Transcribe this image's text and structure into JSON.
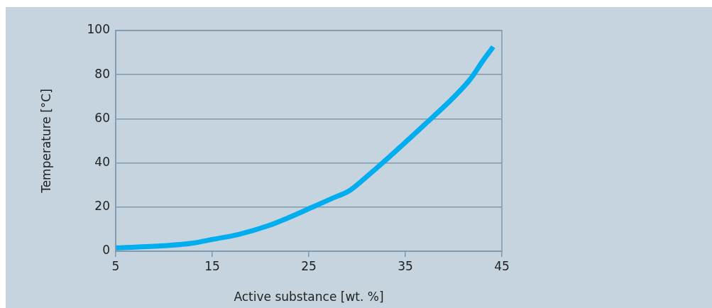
{
  "chart_data": {
    "type": "line",
    "xlabel": "Active substance [wt. %]",
    "ylabel": "Temperature [°C]",
    "xlim": [
      5,
      45
    ],
    "xticks": [
      5,
      15,
      25,
      35,
      45
    ],
    "ylim": [
      0,
      100
    ],
    "yticks": [
      0,
      20,
      40,
      60,
      80,
      100
    ],
    "grid": "y",
    "legend": false,
    "marker": "none",
    "line_style": "solid",
    "series": [
      {
        "color": "#00aeef",
        "x": [
          5,
          10,
          12.9,
          15.2,
          17.8,
          20.7,
          22.8,
          25.4,
          27.4,
          29.2,
          30.9,
          32.9,
          35.3,
          37.9,
          39.9,
          41.7,
          43.1,
          44.1
        ],
        "values": [
          1.5,
          2.5,
          3.6,
          5.5,
          7.7,
          11.4,
          15,
          20,
          23.9,
          27.4,
          33.4,
          41,
          50.5,
          61,
          69.3,
          77.8,
          86.7,
          92.6
        ]
      }
    ]
  }
}
